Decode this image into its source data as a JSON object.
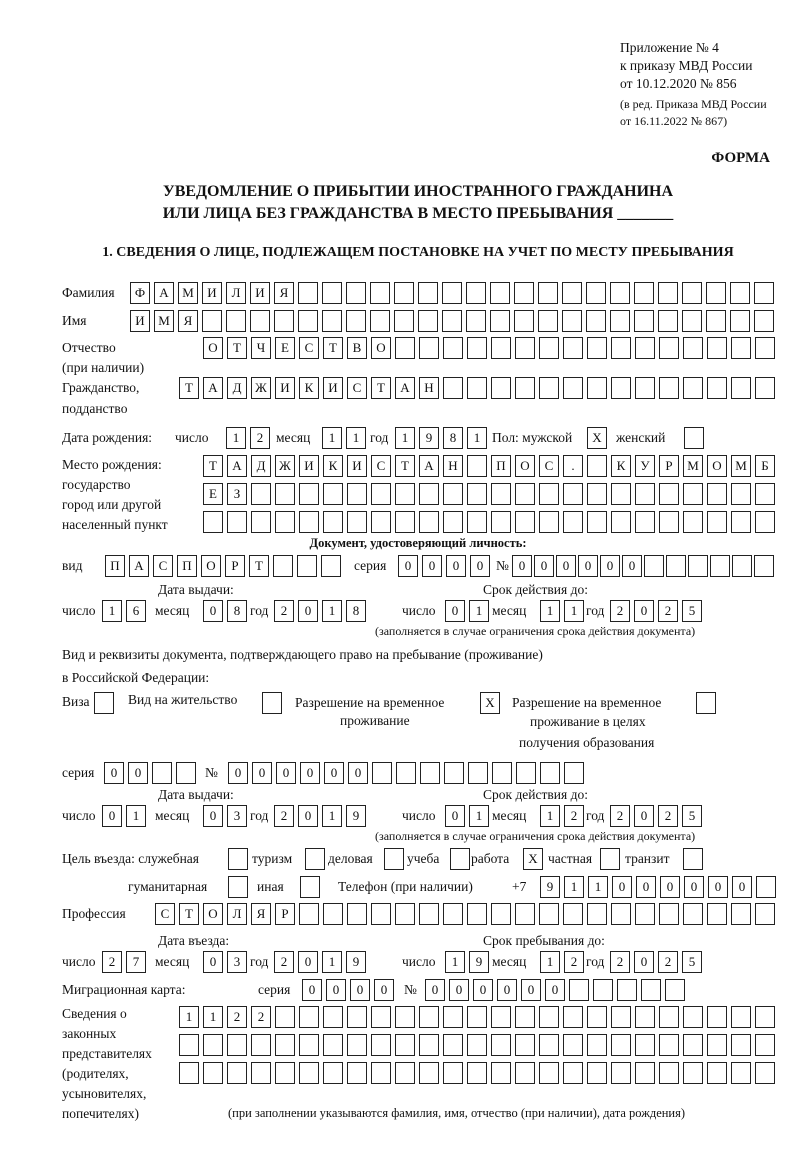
{
  "header": {
    "appendix": "Приложение № 4",
    "order": "к приказу МВД России",
    "order_date": "от 10.12.2020 № 856",
    "rev1": "(в ред. Приказа МВД России",
    "rev2": "от 16.11.2022 № 867)",
    "form": "ФОРМА",
    "title1": "УВЕДОМЛЕНИЕ О ПРИБЫТИИ ИНОСТРАННОГО ГРАЖДАНИНА",
    "title2": "ИЛИ ЛИЦА БЕЗ ГРАЖДАНСТВА В МЕСТО ПРЕБЫВАНИЯ _______",
    "section1": "1. СВЕДЕНИЯ О ЛИЦЕ, ПОДЛЕЖАЩЕМ ПОСТАНОВКЕ НА УЧЕТ ПО МЕСТУ ПРЕБЫВАНИЯ"
  },
  "labels": {
    "surname": "Фамилия",
    "name": "Имя",
    "patronymic": "Отчество",
    "patronymic2": "(при наличии)",
    "citizenship": "Гражданство,",
    "citizenship2": "подданство",
    "birth_date": "Дата рождения:",
    "day": "число",
    "month": "месяц",
    "year": "год",
    "sex": "Пол: мужской",
    "female": "женский",
    "birthplace": "Место рождения:",
    "birthplace2": "государство",
    "birthplace3": "город или другой",
    "birthplace4": "населенный пункт",
    "id_doc": "Документ, удостоверяющий личность:",
    "kind": "вид",
    "series": "серия",
    "number": "№",
    "issue_date": "Дата выдачи:",
    "valid_until": "Срок действия до:",
    "valid_note": "(заполняется в случае ограничения срока действия документа)",
    "stay_doc1": "Вид и реквизиты документа, подтверждающего право на пребывание (проживание)",
    "stay_doc2": "в Российской Федерации:",
    "visa": "Виза",
    "residence": "Вид на жительство",
    "temp1": "Разрешение на временное",
    "temp2": "проживание",
    "edu1": "Разрешение на временное",
    "edu2": "проживание в целях",
    "edu3": "получения образования",
    "purpose": "Цель въезда: служебная",
    "tourism": "туризм",
    "business": "деловая",
    "study": "учеба",
    "work": "работа",
    "private": "частная",
    "transit": "транзит",
    "humanitarian": "гуманитарная",
    "other": "иная",
    "phone": "Телефон (при наличии)",
    "phone_prefix": "+7",
    "profession": "Профессия",
    "entry_date": "Дата въезда:",
    "stay_until": "Срок пребывания до:",
    "migration_card": "Миграционная карта:",
    "reps1": "Сведения о",
    "reps2": "законных",
    "reps3": "представителях",
    "reps4": "(родителях,",
    "reps5": "усыновителях,",
    "reps6": "попечителях)",
    "reps_note": "(при заполнении указываются фамилия, имя, отчество (при наличии), дата рождения)"
  },
  "values": {
    "surname": "ФАМИЛИЯ",
    "name": "ИМЯ",
    "patronymic": "ОТЧЕСТВО",
    "citizenship": "ТАДЖИКИСТАН",
    "birth_day": "12",
    "birth_month": "11",
    "birth_year": "1981",
    "sex_male": "X",
    "sex_female": "",
    "birthplace1": "ТАДЖИКИСТАН ПОС. КУРМОМБ",
    "birthplace2": "ЕЗ",
    "birthplace3": "",
    "id_kind": "ПАСПОРТ",
    "id_series": "0000",
    "id_number": "000000",
    "id_issue_day": "16",
    "id_issue_month": "08",
    "id_issue_year": "2018",
    "id_valid_day": "01",
    "id_valid_month": "11",
    "id_valid_year": "2025",
    "visa": "",
    "residence": "",
    "temp_residence": "X",
    "temp_edu": "",
    "stay_series": "00",
    "stay_number": "000000",
    "stay_issue_day": "01",
    "stay_issue_month": "03",
    "stay_issue_year": "2019",
    "stay_valid_day": "01",
    "stay_valid_month": "12",
    "stay_valid_year": "2025",
    "purpose_official": "",
    "purpose_tourism": "",
    "purpose_business": "",
    "purpose_study": "",
    "purpose_work": "X",
    "purpose_private": "",
    "purpose_transit": "",
    "purpose_humanitarian": "",
    "purpose_other": "",
    "phone": "911000000",
    "profession": "СТОЛЯР",
    "entry_day": "27",
    "entry_month": "03",
    "entry_year": "2019",
    "until_day": "19",
    "until_month": "12",
    "until_year": "2025",
    "mc_series": "0000",
    "mc_number": "000000",
    "reps1": "1122",
    "reps2": "",
    "reps3": ""
  }
}
